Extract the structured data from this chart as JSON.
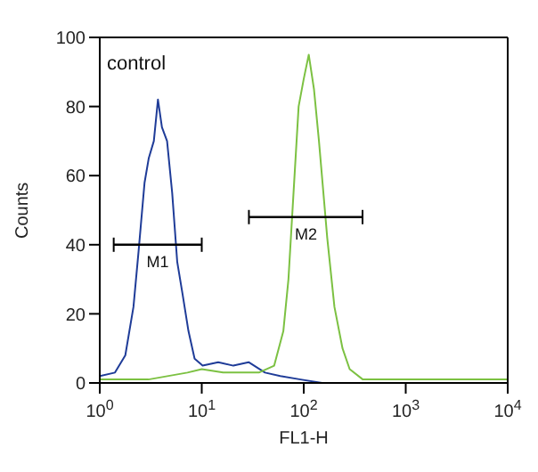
{
  "chart_data": {
    "type": "line",
    "xlabel": "FL1-H",
    "ylabel": "Counts",
    "log": "x",
    "xlim": [
      1,
      10000
    ],
    "ylim": [
      0,
      100
    ],
    "xticks": [
      {
        "value": 1,
        "label": "10$^{0}$"
      },
      {
        "value": 10,
        "label": "10$^{1}$"
      },
      {
        "value": 100,
        "label": "10$^{2}$"
      },
      {
        "value": 1000,
        "label": "10$^{3}$"
      },
      {
        "value": 10000,
        "label": "10$^{4}$"
      }
    ],
    "yticks": [
      0,
      20,
      40,
      60,
      80,
      100
    ],
    "grid": false,
    "legend": false,
    "marker": "none",
    "series": [
      {
        "color": "#1f3c98",
        "x": [
          1,
          1.41,
          1.78,
          2.14,
          2.4,
          2.75,
          3.02,
          3.39,
          3.72,
          4.07,
          4.57,
          5.13,
          5.75,
          6.46,
          7.41,
          8.51,
          10.2,
          14.5,
          20.4,
          28.8,
          41.7,
          58.9,
          93.3,
          151,
          300
        ],
        "values": [
          2,
          3,
          8,
          22,
          38,
          58,
          65,
          70,
          82,
          74,
          70,
          55,
          35,
          26,
          15,
          7,
          5,
          6,
          5,
          6,
          3,
          2,
          1,
          0,
          0
        ]
      },
      {
        "color": "#7cc142",
        "x": [
          1,
          3,
          7.24,
          10,
          16.2,
          36.3,
          51.3,
          63.1,
          70.8,
          79.4,
          89.1,
          100,
          112,
          126,
          141,
          170,
          200,
          240,
          282,
          380,
          1000,
          10000
        ],
        "values": [
          1,
          1,
          3,
          4,
          3,
          3,
          5,
          15,
          30,
          55,
          80,
          88,
          95,
          85,
          70,
          42,
          22,
          10,
          4,
          1,
          1,
          1
        ]
      },
      {
        "color": "#000000",
        "x": [
          1.37,
          10
        ],
        "values": [
          40,
          40
        ]
      },
      {
        "color": "#000000",
        "x": [
          29,
          377
        ],
        "values": [
          48,
          48
        ]
      }
    ],
    "annotations": [
      "control",
      {
        "text": "M1",
        "x": 3.7,
        "y": 40
      },
      {
        "text": "M2",
        "x": 105,
        "y": 48
      }
    ]
  }
}
